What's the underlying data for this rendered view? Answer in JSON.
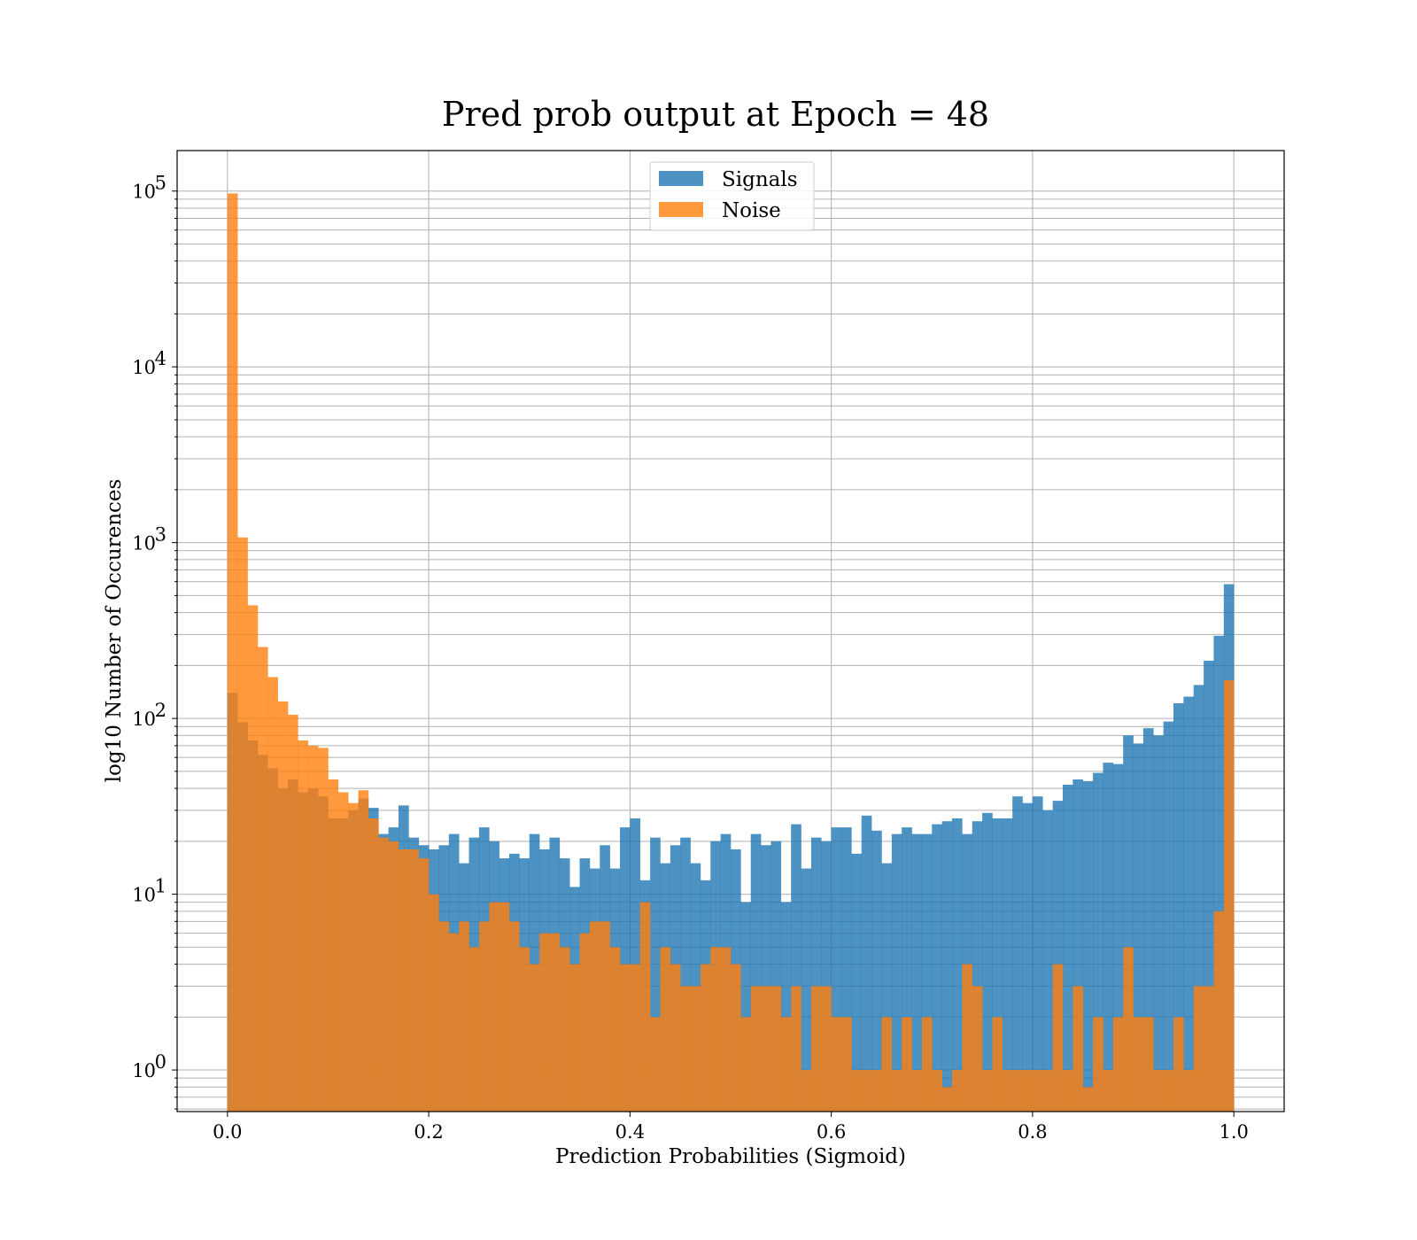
{
  "chart_data": {
    "type": "bar",
    "title": "Pred prob output at Epoch = 48",
    "xlabel": "Prediction Probabilities (Sigmoid)",
    "ylabel": "log10 Number of Occurences",
    "xlim": [
      -0.05,
      1.05
    ],
    "ylim": [
      0.58,
      170000
    ],
    "yscale": "log",
    "grid": true,
    "legend_position": "top-center",
    "x_ticks": [
      "0.0",
      "0.2",
      "0.4",
      "0.6",
      "0.8",
      "1.0"
    ],
    "y_ticks": [
      {
        "base": "10",
        "exp": "0"
      },
      {
        "base": "10",
        "exp": "1"
      },
      {
        "base": "10",
        "exp": "2"
      },
      {
        "base": "10",
        "exp": "3"
      },
      {
        "base": "10",
        "exp": "4"
      },
      {
        "base": "10",
        "exp": "5"
      }
    ],
    "bins": 100,
    "bin_range": [
      0,
      1
    ],
    "series": [
      {
        "name": "Signals",
        "color": "#1f77b4",
        "values": [
          140,
          95,
          75,
          62,
          52,
          40,
          45,
          38,
          40,
          36,
          27,
          27,
          30,
          35,
          31,
          22,
          24,
          32,
          21,
          19,
          18,
          19,
          22,
          15,
          21,
          24,
          20,
          16,
          17,
          16,
          22,
          18,
          21,
          16,
          11,
          16,
          14,
          19,
          14,
          24,
          27,
          12,
          21,
          15,
          19,
          21,
          15,
          12,
          20,
          22,
          18,
          9,
          22,
          19,
          20,
          9,
          25,
          14,
          21,
          20,
          24,
          24,
          17,
          28,
          23,
          15,
          22,
          24,
          22,
          22,
          25,
          26,
          27,
          22,
          26,
          29,
          27,
          27,
          36,
          33,
          36,
          30,
          34,
          42,
          45,
          44,
          49,
          56,
          55,
          80,
          72,
          88,
          80,
          96,
          122,
          133,
          155,
          213,
          295,
          580
        ]
      },
      {
        "name": "Noise",
        "color": "#ff7f0e",
        "values": [
          97000,
          1070,
          440,
          255,
          172,
          125,
          105,
          75,
          70,
          68,
          45,
          38,
          33,
          39,
          27,
          21,
          20,
          18,
          18,
          16,
          10,
          7,
          6,
          7,
          5,
          7,
          9,
          9,
          7,
          5,
          4,
          6,
          6,
          5,
          4,
          6,
          7,
          7,
          5,
          4,
          4,
          9,
          2,
          5,
          4,
          3,
          3,
          4,
          5,
          5,
          4,
          2,
          3,
          3,
          3,
          2,
          3,
          1,
          3,
          3,
          2,
          2,
          1,
          1,
          1,
          2,
          1,
          2,
          1,
          2,
          1,
          0.8,
          1,
          4,
          3,
          1,
          2,
          1,
          1,
          1,
          1,
          1,
          4,
          1,
          3,
          0.8,
          2,
          1,
          2,
          5,
          2,
          2,
          1,
          1,
          2,
          1,
          3,
          3,
          8,
          165
        ]
      }
    ]
  }
}
